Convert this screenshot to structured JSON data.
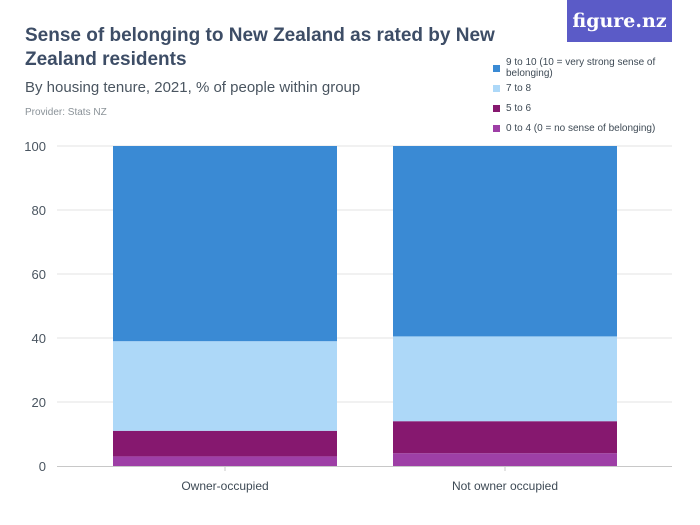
{
  "header": {
    "title": "Sense of belonging to New Zealand as rated by New Zealand residents",
    "subtitle": "By housing tenure, 2021, % of people within group",
    "provider": "Provider: Stats NZ",
    "logo": "figure.nz"
  },
  "colors": {
    "9-10": "#3a8ad4",
    "7-8": "#add8f8",
    "5-6": "#86186f",
    "0-4": "#9e3fa6",
    "grid": "#e3e3e3"
  },
  "chart_data": {
    "type": "bar",
    "stacked": true,
    "categories": [
      "Owner-occupied",
      "Not owner occupied"
    ],
    "series": [
      {
        "name": "0 to 4 (0 = no sense of belonging)",
        "key": "0-4",
        "values": [
          3,
          4
        ]
      },
      {
        "name": "5 to 6",
        "key": "5-6",
        "values": [
          8,
          10
        ]
      },
      {
        "name": "7 to 8",
        "key": "7-8",
        "values": [
          28,
          26.5
        ]
      },
      {
        "name": "9 to 10 (10 = very strong sense of belonging)",
        "key": "9-10",
        "values": [
          61,
          59.5
        ]
      }
    ],
    "legend_order": [
      "9-10",
      "7-8",
      "5-6",
      "0-4"
    ],
    "ylim": [
      0,
      100
    ],
    "yticks": [
      0,
      20,
      40,
      60,
      80,
      100
    ],
    "grid": true,
    "legend_position": "top-right"
  }
}
